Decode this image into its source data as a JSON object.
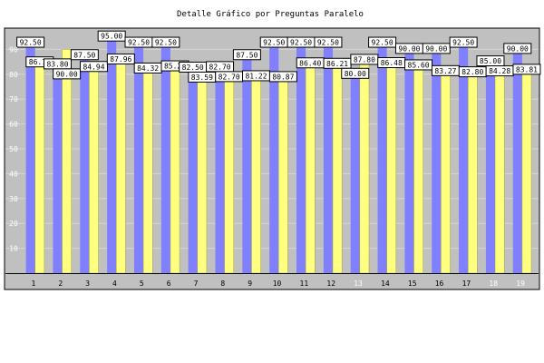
{
  "chart_data": {
    "type": "bar",
    "title": "Detalle Gráfico por Preguntas Paralelo",
    "xlabel": "",
    "ylabel": "",
    "categories": [
      "1",
      "2",
      "3",
      "4",
      "5",
      "6",
      "7",
      "8",
      "9",
      "10",
      "11",
      "12",
      "13",
      "14",
      "15",
      "16",
      "17",
      "18",
      "19"
    ],
    "series": [
      {
        "color": "#8080ff",
        "values": [
          92.5,
          83.8,
          87.5,
          95.0,
          92.5,
          92.5,
          82.5,
          82.7,
          87.5,
          92.5,
          92.5,
          92.5,
          80.0,
          92.5,
          90.0,
          90.0,
          92.5,
          85.0,
          90.0
        ]
      },
      {
        "color": "#ffff80",
        "values": [
          86.79,
          90.0,
          84.94,
          87.96,
          84.32,
          85.2,
          83.59,
          82.7,
          81.22,
          80.87,
          86.4,
          86.21,
          87.8,
          86.48,
          85.6,
          83.27,
          82.8,
          84.28,
          83.81
        ]
      }
    ],
    "ylim": [
      0,
      100
    ],
    "y_ticks": [
      10,
      20,
      30,
      40,
      50,
      60,
      70,
      80,
      90
    ],
    "grid": true,
    "data_labels": true,
    "colors": {
      "plot_bg": "#c0c0c0",
      "grid": "#d6d6d6",
      "tick_label": "#ffffff",
      "category_label": "#000000"
    }
  }
}
